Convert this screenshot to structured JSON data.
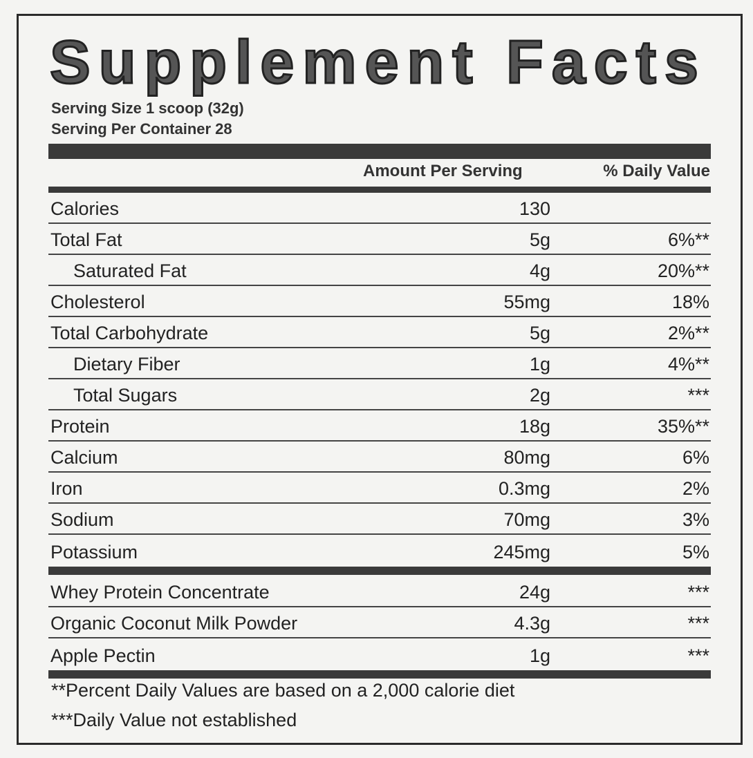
{
  "title": "Supplement Facts",
  "serving_size": "Serving Size 1 scoop (32g)",
  "servings_per_container": "Serving Per Container 28",
  "headers": {
    "amount": "Amount Per Serving",
    "daily_value": "% Daily Value"
  },
  "nutrients": [
    {
      "label": "Calories",
      "amount": "130",
      "dv": "",
      "indent": false
    },
    {
      "label": "Total Fat",
      "amount": "5g",
      "dv": "6%**",
      "indent": false
    },
    {
      "label": "Saturated Fat",
      "amount": "4g",
      "dv": "20%**",
      "indent": true
    },
    {
      "label": "Cholesterol",
      "amount": "55mg",
      "dv": "18%",
      "indent": false
    },
    {
      "label": "Total Carbohydrate",
      "amount": "5g",
      "dv": "2%**",
      "indent": false
    },
    {
      "label": "Dietary Fiber",
      "amount": "1g",
      "dv": "4%**",
      "indent": true
    },
    {
      "label": "Total Sugars",
      "amount": "2g",
      "dv": "***",
      "indent": true
    },
    {
      "label": "Protein",
      "amount": "18g",
      "dv": "35%**",
      "indent": false
    },
    {
      "label": "Calcium",
      "amount": "80mg",
      "dv": "6%",
      "indent": false
    },
    {
      "label": "Iron",
      "amount": "0.3mg",
      "dv": "2%",
      "indent": false
    },
    {
      "label": "Sodium",
      "amount": "70mg",
      "dv": "3%",
      "indent": false
    },
    {
      "label": "Potassium",
      "amount": "245mg",
      "dv": "5%",
      "indent": false
    }
  ],
  "ingredients": [
    {
      "label": "Whey Protein Concentrate",
      "amount": "24g",
      "dv": "***"
    },
    {
      "label": "Organic Coconut Milk Powder",
      "amount": "4.3g",
      "dv": "***"
    },
    {
      "label": "Apple Pectin",
      "amount": "1g",
      "dv": "***"
    }
  ],
  "footnotes": [
    "**Percent Daily Values are based on a 2,000 calorie diet",
    "***Daily Value not established"
  ]
}
